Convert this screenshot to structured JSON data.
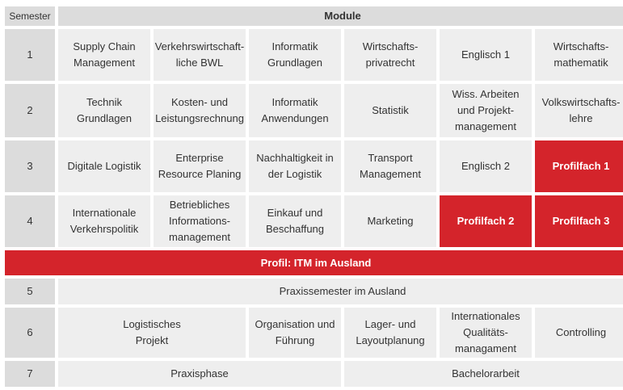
{
  "header": {
    "semester": "Semester",
    "module": "Module"
  },
  "rows": {
    "r1": {
      "sem": "1",
      "c": [
        "Supply Chain\nManagement",
        "Verkehrswirtschaft-\nliche BWL",
        "Informatik\nGrundlagen",
        "Wirtschafts-\nprivatrecht",
        "Englisch 1",
        "Wirtschafts-\nmathematik"
      ]
    },
    "r2": {
      "sem": "2",
      "c": [
        "Technik\nGrundlagen",
        "Kosten- und\nLeistungsrechnung",
        "Informatik\nAnwendungen",
        "Statistik",
        "Wiss. Arbeiten\nund Projekt-\nmanagement",
        "Volkswirtschafts-\nlehre"
      ]
    },
    "r3": {
      "sem": "3",
      "c": [
        "Digitale Logistik",
        "Enterprise\nResource Planing",
        "Nachhaltigkeit in\nder Logistik",
        "Transport\nManagement",
        "Englisch 2",
        "Profilfach 1"
      ]
    },
    "r4": {
      "sem": "4",
      "c": [
        "Internationale\nVerkehrspolitik",
        "Betriebliches\nInformations-\nmanagement",
        "Einkauf und\nBeschaffung",
        "Marketing",
        "Profilfach 2",
        "Profilfach 3"
      ]
    },
    "banner": "Profil: ITM im Ausland",
    "r5": {
      "sem": "5",
      "c": [
        "Praxissemester im Ausland"
      ]
    },
    "r6": {
      "sem": "6",
      "c": [
        "Logistisches\nProjekt",
        "Organisation und\nFührung",
        "Lager- und\nLayoutplanung",
        "Internationales\nQualitäts-\nmanagament",
        "Controlling"
      ]
    },
    "r7": {
      "sem": "7",
      "c": [
        "Praxisphase",
        "Bachelorarbeit"
      ]
    }
  },
  "colors": {
    "accent_red": "#d4242b",
    "cell_bg": "#eeeeee",
    "header_bg": "#dcdcdc"
  }
}
